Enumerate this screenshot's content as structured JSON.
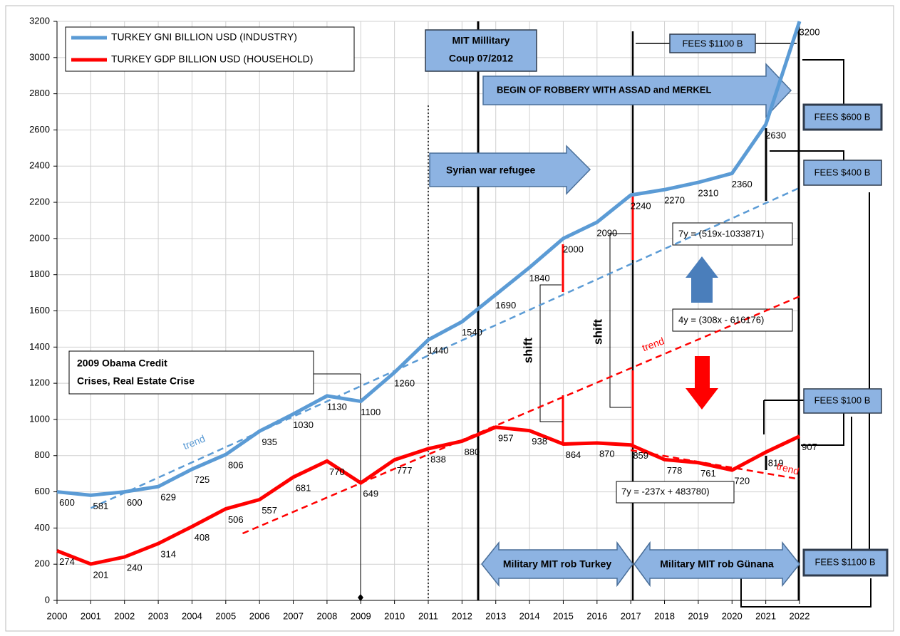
{
  "chart_data": {
    "type": "line",
    "x": [
      2000,
      2001,
      2002,
      2003,
      2004,
      2005,
      2006,
      2007,
      2008,
      2009,
      2010,
      2011,
      2012,
      2013,
      2014,
      2015,
      2016,
      2017,
      2018,
      2019,
      2020,
      2021,
      2022
    ],
    "series": [
      {
        "name": "TURKEY GNI BILLION USD (INDUSTRY)",
        "color": "#5b9bd5",
        "values": [
          600,
          581,
          600,
          629,
          725,
          806,
          935,
          1030,
          1130,
          1100,
          1260,
          1440,
          1540,
          1690,
          1840,
          2000,
          2090,
          2240,
          2270,
          2310,
          2360,
          2630,
          3200
        ]
      },
      {
        "name": "TURKEY GDP BILLION USD (HOUSEHOLD)",
        "color": "#ff0000",
        "values": [
          274,
          201,
          240,
          314,
          408,
          506,
          557,
          681,
          770,
          649,
          777,
          838,
          880,
          957,
          938,
          864,
          870,
          859,
          778,
          761,
          720,
          819,
          907
        ]
      }
    ],
    "trends": [
      {
        "x": [
          2001,
          2022
        ],
        "values": [
          510,
          2280
        ],
        "color": "#5b9bd5"
      },
      {
        "x": [
          2005.5,
          2022
        ],
        "values": [
          370,
          1680
        ],
        "color": "#ff0000"
      },
      {
        "x": [
          2017,
          2022
        ],
        "values": [
          830,
          670
        ],
        "color": "#ff0000"
      }
    ],
    "xlim": [
      2000,
      2022
    ],
    "xticks": [
      2000,
      2001,
      2002,
      2003,
      2004,
      2005,
      2006,
      2007,
      2008,
      2009,
      2010,
      2011,
      2012,
      2013,
      2014,
      2015,
      2016,
      2017,
      2018,
      2019,
      2020,
      2021,
      2022
    ],
    "ylim": [
      0,
      3200
    ],
    "yticks": [
      0,
      200,
      400,
      600,
      800,
      1000,
      1200,
      1400,
      1600,
      1800,
      2000,
      2200,
      2400,
      2600,
      2800,
      3000,
      3200
    ],
    "grid": true,
    "annotations": {
      "trend": "trend",
      "coup_1": "MIT Millitary",
      "coup_2": "Coup 07/2012",
      "robbery": "BEGIN OF ROBBERY WITH ASSAD and MERKEL",
      "refugee": "Syrian war refugee",
      "fees_top": "FEES $1100 B",
      "fees_600": "FEES $600 B",
      "fees_400": "FEES $400 B",
      "fees_100": "FEES $100 B",
      "fees_bottom": "FEES $1100 B",
      "eq1": "7y = (519x-1033871)",
      "eq2": "4y = (308x - 616176)",
      "eq3": "7y = -237x + 483780)",
      "obama_1": "2009 Obama Credit",
      "obama_2": "Crises, Real Estate Crise",
      "shift": "shift",
      "rob_turkey": "Military MIT rob Turkey",
      "rob_gunana": "Military MIT rob Günana"
    }
  }
}
